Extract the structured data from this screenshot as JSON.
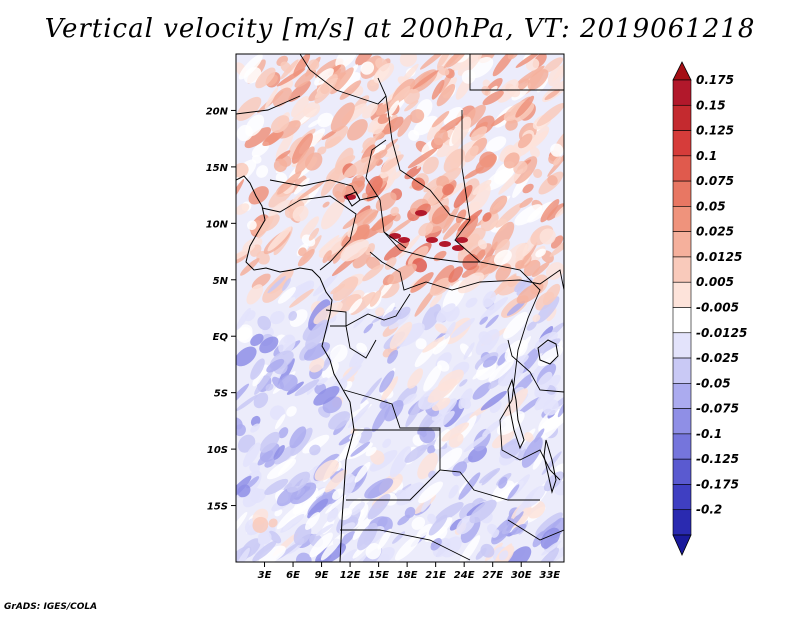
{
  "title": "Vertical velocity [m/s] at 200hPa, VT: 2019061218",
  "footer": "GrADS: IGES/COLA",
  "map": {
    "variable": "vertical velocity",
    "level": "200hPa",
    "valid_time": "2019061218",
    "lon_range": [
      0,
      34.5
    ],
    "lat_range": [
      -20,
      25
    ],
    "lon_ticks": [
      {
        "value": 3,
        "label": "3E"
      },
      {
        "value": 6,
        "label": "6E"
      },
      {
        "value": 9,
        "label": "9E"
      },
      {
        "value": 12,
        "label": "12E"
      },
      {
        "value": 15,
        "label": "15E"
      },
      {
        "value": 18,
        "label": "18E"
      },
      {
        "value": 21,
        "label": "21E"
      },
      {
        "value": 24,
        "label": "24E"
      },
      {
        "value": 27,
        "label": "27E"
      },
      {
        "value": 30,
        "label": "30E"
      },
      {
        "value": 33,
        "label": "33E"
      }
    ],
    "lat_ticks": [
      {
        "value": 20,
        "label": "20N"
      },
      {
        "value": 15,
        "label": "15N"
      },
      {
        "value": 10,
        "label": "10N"
      },
      {
        "value": 5,
        "label": "5N"
      },
      {
        "value": 0,
        "label": "EQ"
      },
      {
        "value": -5,
        "label": "5S"
      },
      {
        "value": -10,
        "label": "10S"
      },
      {
        "value": -15,
        "label": "15S"
      }
    ]
  },
  "colorbar": {
    "levels": [
      {
        "label": "0.175",
        "color": "#b2182b"
      },
      {
        "label": "0.15",
        "color": "#c42a2f"
      },
      {
        "label": "0.125",
        "color": "#d63c3a"
      },
      {
        "label": "0.1",
        "color": "#e05a4d"
      },
      {
        "label": "0.075",
        "color": "#e87763"
      },
      {
        "label": "0.05",
        "color": "#ef937c"
      },
      {
        "label": "0.025",
        "color": "#f5b09c"
      },
      {
        "label": "0.0125",
        "color": "#f9cabb"
      },
      {
        "label": "0.005",
        "color": "#fde3da"
      },
      {
        "label": "-0.005",
        "color": "#ffffff"
      },
      {
        "label": "-0.0125",
        "color": "#e3e3fb"
      },
      {
        "label": "-0.025",
        "color": "#c9c9f5"
      },
      {
        "label": "-0.05",
        "color": "#ababef"
      },
      {
        "label": "-0.075",
        "color": "#8f8fe6"
      },
      {
        "label": "-0.1",
        "color": "#7575dc"
      },
      {
        "label": "-0.125",
        "color": "#5a5ad0"
      },
      {
        "label": "-0.175",
        "color": "#3f3fc2"
      },
      {
        "label": "-0.2",
        "color": "#2a2ab0"
      }
    ],
    "top_color": "#a50f15",
    "bottom_color": "#1a1a9c"
  }
}
